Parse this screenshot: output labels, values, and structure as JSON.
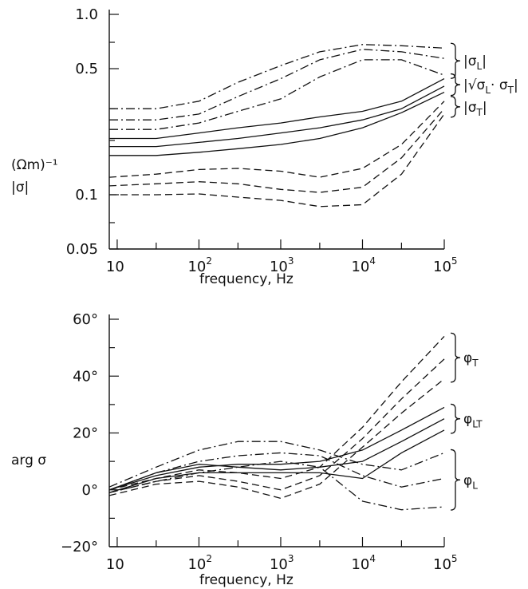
{
  "chart_data": [
    {
      "type": "line",
      "ylabel_unit": "(Ωm)⁻¹",
      "ylabel": "|σ|",
      "xlabel": "frequency,  Hz",
      "xscale": "log",
      "yscale": "log",
      "xlim": [
        8,
        100000
      ],
      "ylim": [
        0.05,
        1.0
      ],
      "x_ticks": [
        {
          "label": "10",
          "sup": ""
        },
        {
          "label": "10",
          "sup": "2"
        },
        {
          "label": "10",
          "sup": "3"
        },
        {
          "label": "10",
          "sup": "4"
        },
        {
          "label": "10",
          "sup": "5"
        }
      ],
      "y_ticks": [
        "1.0",
        "0.5",
        "0.1",
        "0.05"
      ],
      "y_tick_values": [
        1.0,
        0.5,
        0.1,
        0.05
      ],
      "x": [
        8,
        30,
        100,
        300,
        1000,
        3000,
        10000,
        30000,
        100000
      ],
      "series": [
        {
          "style": "dashdot",
          "group": "sigma_L",
          "values": [
            0.3,
            0.3,
            0.33,
            0.42,
            0.52,
            0.62,
            0.68,
            0.67,
            0.65
          ]
        },
        {
          "style": "dashdot",
          "group": "sigma_L",
          "values": [
            0.26,
            0.26,
            0.28,
            0.35,
            0.44,
            0.56,
            0.64,
            0.62,
            0.57
          ]
        },
        {
          "style": "dashdot",
          "group": "sigma_L",
          "values": [
            0.23,
            0.23,
            0.25,
            0.29,
            0.34,
            0.45,
            0.56,
            0.56,
            0.46
          ]
        },
        {
          "style": "solid",
          "group": "sigma_LT",
          "values": [
            0.205,
            0.205,
            0.22,
            0.235,
            0.25,
            0.27,
            0.29,
            0.33,
            0.44
          ]
        },
        {
          "style": "solid",
          "group": "sigma_LT",
          "values": [
            0.185,
            0.185,
            0.195,
            0.205,
            0.22,
            0.235,
            0.26,
            0.3,
            0.4
          ]
        },
        {
          "style": "solid",
          "group": "sigma_LT",
          "values": [
            0.165,
            0.165,
            0.172,
            0.18,
            0.19,
            0.205,
            0.235,
            0.285,
            0.37
          ]
        },
        {
          "style": "dash",
          "group": "sigma_T",
          "values": [
            0.125,
            0.13,
            0.138,
            0.14,
            0.135,
            0.125,
            0.14,
            0.19,
            0.33
          ]
        },
        {
          "style": "dash",
          "group": "sigma_T",
          "values": [
            0.112,
            0.115,
            0.118,
            0.115,
            0.107,
            0.103,
            0.11,
            0.16,
            0.3
          ]
        },
        {
          "style": "dash",
          "group": "sigma_T",
          "values": [
            0.1,
            0.1,
            0.101,
            0.097,
            0.093,
            0.086,
            0.088,
            0.13,
            0.28
          ]
        }
      ],
      "legend": [
        {
          "key": "sigma_L",
          "text": "|σ",
          "sub": "L",
          "end": "|"
        },
        {
          "key": "sigma_LT",
          "text": "|√σ",
          "sub": "L",
          "mid": "· σ",
          "sub2": "T",
          "end": "|"
        },
        {
          "key": "sigma_T",
          "text": "|σ",
          "sub": "T",
          "end": "|"
        }
      ]
    },
    {
      "type": "line",
      "ylabel": "arg σ",
      "xlabel": "frequency,  Hz",
      "xscale": "log",
      "xlim": [
        8,
        100000
      ],
      "ylim": [
        -20,
        60
      ],
      "x_ticks": [
        {
          "label": "10",
          "sup": ""
        },
        {
          "label": "10",
          "sup": "2"
        },
        {
          "label": "10",
          "sup": "3"
        },
        {
          "label": "10",
          "sup": "4"
        },
        {
          "label": "10",
          "sup": "5"
        }
      ],
      "y_ticks": [
        "60°",
        "40°",
        "20°",
        "0°",
        "−20°"
      ],
      "y_tick_values": [
        60,
        40,
        20,
        0,
        -20
      ],
      "x": [
        8,
        30,
        100,
        300,
        1000,
        3000,
        10000,
        30000,
        100000
      ],
      "series": [
        {
          "style": "dash",
          "group": "phi_T",
          "values": [
            0,
            4,
            7,
            6,
            4,
            8,
            22,
            38,
            54
          ]
        },
        {
          "style": "dash",
          "group": "phi_T",
          "values": [
            -1,
            3,
            5,
            3,
            0,
            5,
            18,
            32,
            46
          ]
        },
        {
          "style": "dash",
          "group": "phi_T",
          "values": [
            -2,
            2,
            3,
            1,
            -3,
            2,
            15,
            27,
            39
          ]
        },
        {
          "style": "solid",
          "group": "phi_LT",
          "values": [
            0,
            5,
            8,
            9,
            9,
            10,
            14,
            21,
            29
          ]
        },
        {
          "style": "solid",
          "group": "phi_LT",
          "values": [
            0,
            6,
            9,
            8,
            7,
            8,
            10,
            17,
            25
          ]
        },
        {
          "style": "solid",
          "group": "phi_LT",
          "values": [
            -1,
            4,
            6,
            6,
            6,
            6,
            4,
            13,
            21
          ]
        },
        {
          "style": "dashdot",
          "group": "phi_L",
          "values": [
            1,
            8,
            14,
            17,
            17,
            14,
            9,
            7,
            13
          ]
        },
        {
          "style": "dashdot",
          "group": "phi_L",
          "values": [
            0,
            6,
            10,
            12,
            13,
            12,
            5,
            1,
            4
          ]
        },
        {
          "style": "dashdot",
          "group": "phi_L",
          "values": [
            -1,
            3,
            6,
            8,
            10,
            8,
            -4,
            -7,
            -6
          ]
        }
      ],
      "legend": [
        {
          "key": "phi_T",
          "text": "φ",
          "sub": "T"
        },
        {
          "key": "phi_LT",
          "text": "φ",
          "sub": "LT"
        },
        {
          "key": "phi_L",
          "text": "φ",
          "sub": "L"
        }
      ]
    }
  ]
}
